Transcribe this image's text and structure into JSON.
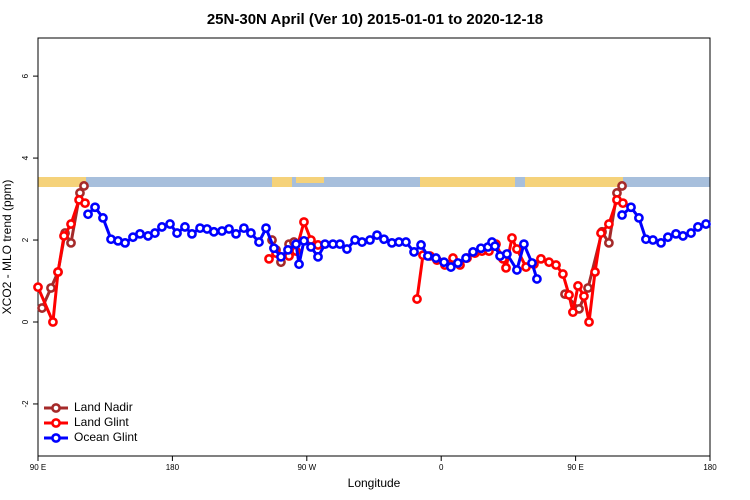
{
  "chart_data": {
    "type": "line",
    "title": "25N-30N April (Ver 10)   2015-01-01 to 2020-12-18",
    "x_label": "Longitude",
    "y_label": "XCO2 - MLO trend (ppm)",
    "xlim": [
      90,
      540
    ],
    "ylim": [
      -3.27,
      6.93
    ],
    "xticks": [
      {
        "value": 90,
        "label": "90 E"
      },
      180,
      {
        "value": 270,
        "label": "90 W"
      },
      {
        "value": 360,
        "label": "0"
      },
      {
        "value": 450,
        "label": "90 E"
      },
      {
        "value": 540,
        "label": "180"
      }
    ],
    "yticks": [
      -2,
      0,
      2,
      4,
      6
    ],
    "legend": "bottom-left",
    "series": [
      {
        "name": "Land Nadir",
        "color": "#a52a2a",
        "x": [
          92.7,
          98.7,
          103.4,
          108.1,
          112.1,
          118.1,
          120.8,
          null,
          246.7,
          249.4,
          252.7,
          258.1,
          261.4,
          null,
          442.9,
          452.3,
          458.3,
          467.7,
          472.3,
          477.7,
          481.1
        ],
        "values": [
          0.34,
          0.83,
          1.22,
          2.17,
          1.93,
          3.15,
          3.32,
          null,
          2.0,
          1.76,
          1.46,
          1.9,
          1.95,
          null,
          0.68,
          0.32,
          0.83,
          2.2,
          1.93,
          3.15,
          3.32
        ]
      },
      {
        "name": "Land Glint",
        "color": "#ff0000",
        "x": [
          90,
          100.0,
          103.4,
          107.4,
          112.1,
          117.5,
          121.5,
          null,
          244.7,
          249.4,
          258.1,
          262.8,
          268.1,
          272.8,
          277.5,
          null,
          343.8,
          347.8,
          352.5,
          357.2,
          362.5,
          367.9,
          372.6,
          377.3,
          382.6,
          387.3,
          392.0,
          396.7,
          401.4,
          403.4,
          407.4,
          410.7,
          416.8,
          422.1,
          426.8,
          432.2,
          436.9,
          441.5,
          445.6,
          448.2,
          451.6,
          455.6,
          459.0,
          463.0,
          467.0,
          472.3,
          477.7,
          481.7
        ],
        "values": [
          0.85,
          0.0,
          1.22,
          2.1,
          2.39,
          2.98,
          2.9,
          null,
          1.54,
          1.68,
          1.61,
          1.73,
          2.44,
          2.0,
          1.88,
          null,
          0.56,
          1.63,
          1.61,
          1.51,
          1.39,
          1.56,
          1.39,
          1.56,
          1.68,
          1.73,
          1.73,
          1.9,
          1.54,
          1.32,
          2.05,
          1.78,
          1.34,
          1.41,
          1.54,
          1.46,
          1.39,
          1.17,
          0.66,
          0.24,
          0.88,
          0.63,
          0.0,
          1.22,
          2.17,
          2.39,
          2.98,
          2.9
        ]
      },
      {
        "name": "Ocean Glint",
        "color": "#0000ff",
        "x": [
          123.5,
          128.2,
          133.5,
          138.9,
          143.6,
          148.3,
          153.6,
          158.3,
          163.7,
          168.3,
          173.0,
          178.4,
          183.1,
          188.4,
          193.1,
          198.5,
          203.2,
          207.8,
          213.2,
          217.9,
          222.6,
          227.9,
          232.6,
          238.0,
          242.7,
          248.0,
          252.7,
          257.4,
          262.8,
          264.8,
          268.1,
          272.8,
          277.5,
          282.2,
          287.5,
          292.2,
          296.9,
          302.3,
          307.0,
          312.3,
          317.0,
          321.7,
          327.0,
          331.7,
          336.4,
          341.8,
          346.5,
          351.1,
          356.5,
          361.9,
          366.5,
          371.2,
          376.6,
          381.3,
          386.6,
          391.3,
          394.0,
          396.0,
          399.4,
          404.0,
          410.7,
          415.4,
          420.8,
          424.1,
          null,
          481.1,
          487.1,
          492.4,
          497.1,
          501.8,
          507.2,
          511.8,
          517.2,
          521.9,
          527.3,
          531.9,
          537.3
        ],
        "values": [
          2.63,
          2.8,
          2.54,
          2.02,
          1.98,
          1.93,
          2.07,
          2.15,
          2.1,
          2.17,
          2.32,
          2.39,
          2.17,
          2.32,
          2.15,
          2.29,
          2.27,
          2.2,
          2.22,
          2.27,
          2.15,
          2.29,
          2.17,
          1.95,
          2.29,
          1.8,
          1.59,
          1.76,
          1.9,
          1.41,
          1.98,
          1.83,
          1.59,
          1.9,
          1.9,
          1.9,
          1.78,
          2.0,
          1.95,
          2.0,
          2.12,
          2.02,
          1.93,
          1.95,
          1.95,
          1.71,
          1.88,
          1.61,
          1.56,
          1.46,
          1.34,
          1.44,
          1.56,
          1.71,
          1.8,
          1.83,
          1.95,
          1.85,
          1.61,
          1.66,
          1.27,
          1.9,
          1.44,
          1.05,
          null,
          2.61,
          2.8,
          2.54,
          2.02,
          2.0,
          1.93,
          2.07,
          2.15,
          2.1,
          2.17,
          2.32,
          2.39
        ]
      }
    ]
  }
}
